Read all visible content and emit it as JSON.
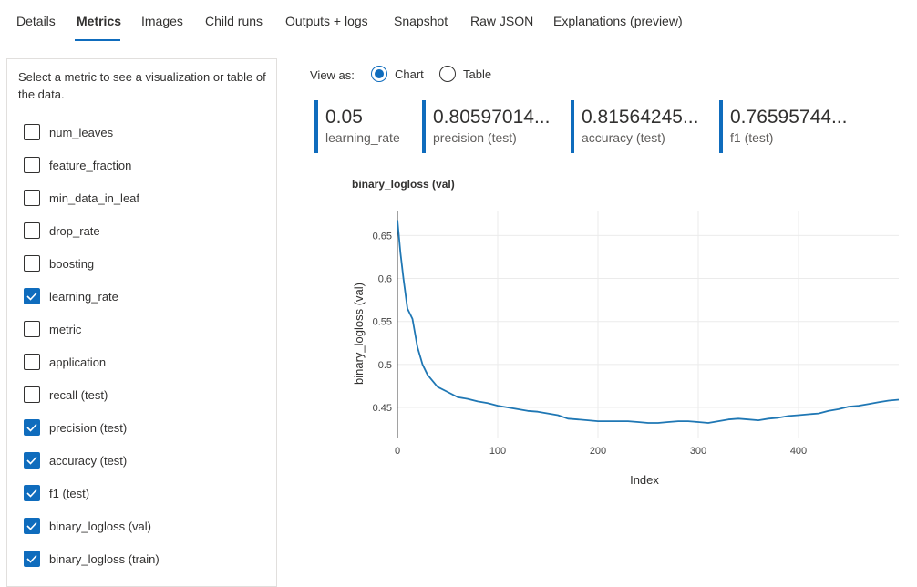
{
  "tabs": [
    "Details",
    "Metrics",
    "Images",
    "Child runs",
    "Outputs + logs",
    "Snapshot",
    "Raw JSON",
    "Explanations (preview)"
  ],
  "active_tab": "Metrics",
  "panel": {
    "hint": "Select a metric to see a visualization or table of the data.",
    "metrics": [
      {
        "label": "num_leaves",
        "checked": false
      },
      {
        "label": "feature_fraction",
        "checked": false
      },
      {
        "label": "min_data_in_leaf",
        "checked": false
      },
      {
        "label": "drop_rate",
        "checked": false
      },
      {
        "label": "boosting",
        "checked": false
      },
      {
        "label": "learning_rate",
        "checked": true
      },
      {
        "label": "metric",
        "checked": false
      },
      {
        "label": "application",
        "checked": false
      },
      {
        "label": "recall (test)",
        "checked": false
      },
      {
        "label": "precision (test)",
        "checked": true
      },
      {
        "label": "accuracy (test)",
        "checked": true
      },
      {
        "label": "f1 (test)",
        "checked": true
      },
      {
        "label": "binary_logloss (val)",
        "checked": true
      },
      {
        "label": "binary_logloss (train)",
        "checked": true
      }
    ]
  },
  "view_as": {
    "label": "View as:",
    "options": [
      "Chart",
      "Table"
    ],
    "selected": "Chart"
  },
  "cards": [
    {
      "value": "0.05",
      "label": "learning_rate"
    },
    {
      "value": "0.80597014...",
      "label": "precision (test)"
    },
    {
      "value": "0.81564245...",
      "label": "accuracy (test)"
    },
    {
      "value": "0.76595744...",
      "label": "f1 (test)"
    }
  ],
  "colors": {
    "accent": "#0f6cbd",
    "line": "#1f77b4"
  },
  "chart_data": {
    "type": "line",
    "title": "binary_logloss (val)",
    "xlabel": "Index",
    "ylabel": "binary_logloss (val)",
    "xlim": [
      0,
      500
    ],
    "ylim": [
      0.415,
      0.678
    ],
    "x_ticks": [
      0,
      100,
      200,
      300,
      400
    ],
    "y_ticks": [
      0.45,
      0.5,
      0.55,
      0.6,
      0.65
    ],
    "y_tick_labels": [
      "0.45",
      "0.5",
      "0.55",
      "0.6",
      "0.65"
    ],
    "grid": true,
    "series": [
      {
        "x": [
          0,
          3,
          6,
          10,
          15,
          20,
          25,
          30,
          40,
          50,
          60,
          70,
          80,
          90,
          100,
          110,
          120,
          130,
          140,
          150,
          160,
          170,
          180,
          190,
          200,
          210,
          220,
          230,
          240,
          250,
          260,
          270,
          280,
          290,
          300,
          310,
          320,
          330,
          340,
          350,
          360,
          370,
          380,
          390,
          400,
          410,
          420,
          430,
          440,
          450,
          460,
          470,
          480,
          490,
          500
        ],
        "y": [
          0.668,
          0.63,
          0.6,
          0.565,
          0.553,
          0.52,
          0.5,
          0.488,
          0.474,
          0.468,
          0.462,
          0.46,
          0.457,
          0.455,
          0.452,
          0.45,
          0.448,
          0.446,
          0.445,
          0.443,
          0.441,
          0.437,
          0.436,
          0.435,
          0.434,
          0.434,
          0.434,
          0.434,
          0.433,
          0.432,
          0.432,
          0.433,
          0.434,
          0.434,
          0.433,
          0.432,
          0.434,
          0.436,
          0.437,
          0.436,
          0.435,
          0.437,
          0.438,
          0.44,
          0.441,
          0.442,
          0.443,
          0.446,
          0.448,
          0.451,
          0.452,
          0.454,
          0.456,
          0.458,
          0.459
        ]
      }
    ]
  }
}
